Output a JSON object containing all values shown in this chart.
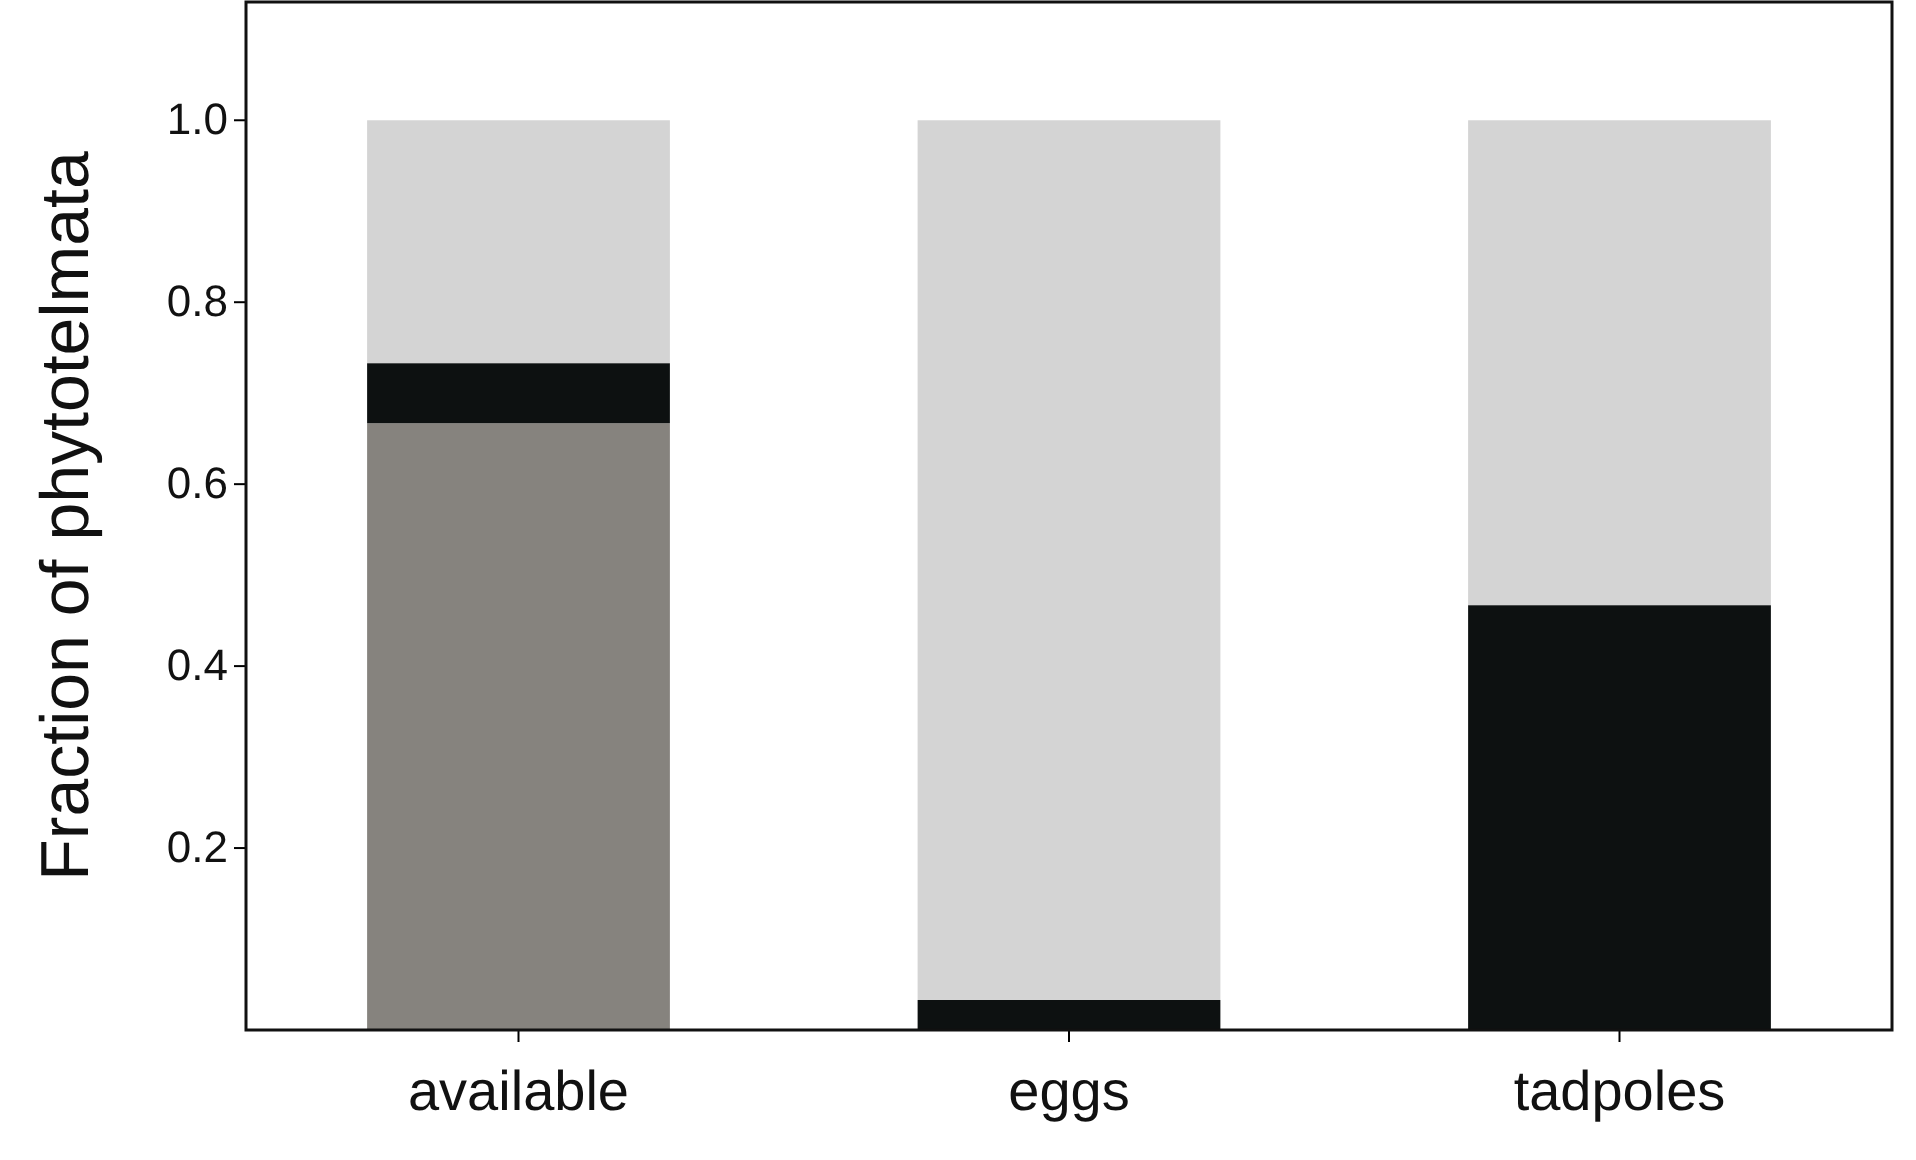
{
  "chart_data": {
    "type": "bar",
    "ylabel": "Fraction of phytotelmata",
    "categories": [
      "available",
      "eggs",
      "tadpoles"
    ],
    "stacked": true,
    "series": [
      {
        "color": "#86837e",
        "values": [
          0.667,
          0,
          0
        ]
      },
      {
        "color": "#0d1111",
        "values": [
          0.066,
          0.033,
          0.467
        ]
      },
      {
        "color": "#d4d4d4",
        "values": [
          0.267,
          0.967,
          0.533
        ]
      }
    ],
    "ylim": [
      0,
      1.13
    ],
    "yticks": [
      {
        "value": 0.2,
        "label": "0.2"
      },
      {
        "value": 0.4,
        "label": "0.4"
      },
      {
        "value": 0.6,
        "label": "0.6"
      },
      {
        "value": 0.8,
        "label": "0.8"
      },
      {
        "value": 1.0,
        "label": "1.0"
      }
    ],
    "grid": false
  }
}
